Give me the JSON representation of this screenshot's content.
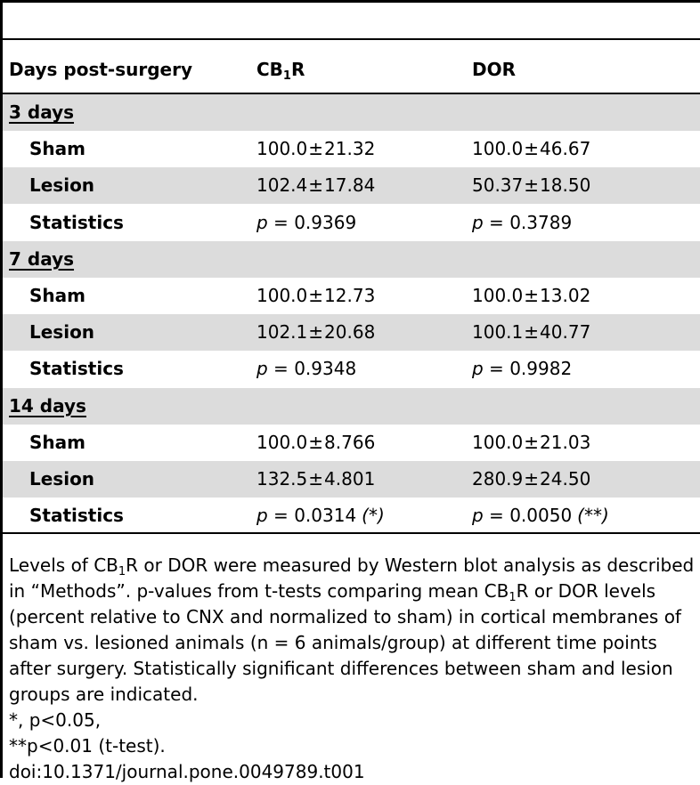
{
  "table": {
    "header": {
      "col1": "Days post-surgery",
      "col2_base": "CB",
      "col2_sub": "1",
      "col2_tail": "R",
      "col3": "DOR"
    },
    "groups": [
      {
        "label": "3 days",
        "rows": [
          {
            "label": "Sham",
            "cb1r_mean": "100.0",
            "cb1r_sd": "21.32",
            "dor_mean": "100.0",
            "dor_sd": "46.67"
          },
          {
            "label": "Lesion",
            "cb1r_mean": "102.4",
            "cb1r_sd": "17.84",
            "dor_mean": "50.37",
            "dor_sd": "18.50"
          },
          {
            "label": "Statistics",
            "cb1r_p": "0.9369",
            "cb1r_sig": "",
            "dor_p": "0.3789",
            "dor_sig": ""
          }
        ]
      },
      {
        "label": "7 days",
        "rows": [
          {
            "label": "Sham",
            "cb1r_mean": "100.0",
            "cb1r_sd": "12.73",
            "dor_mean": "100.0",
            "dor_sd": "13.02"
          },
          {
            "label": "Lesion",
            "cb1r_mean": "102.1",
            "cb1r_sd": "20.68",
            "dor_mean": "100.1",
            "dor_sd": "40.77"
          },
          {
            "label": "Statistics",
            "cb1r_p": "0.9348",
            "cb1r_sig": "",
            "dor_p": "0.9982",
            "dor_sig": ""
          }
        ]
      },
      {
        "label": "14 days",
        "rows": [
          {
            "label": "Sham",
            "cb1r_mean": "100.0",
            "cb1r_sd": "8.766",
            "dor_mean": "100.0",
            "dor_sd": "21.03"
          },
          {
            "label": "Lesion",
            "cb1r_mean": "132.5",
            "cb1r_sd": "4.801",
            "dor_mean": "280.9",
            "dor_sd": "24.50"
          },
          {
            "label": "Statistics",
            "cb1r_p": "0.0314",
            "cb1r_sig": "(*)",
            "dor_p": "0.0050",
            "dor_sig": "(**)"
          }
        ]
      }
    ],
    "pm_symbol": "±",
    "p_symbol": "p",
    "eq_symbol": " = "
  },
  "footnote": {
    "line1_a": "Levels of CB",
    "line1_sub": "1",
    "line1_b": "R or DOR were measured by Western blot analysis as described in “Methods”. p-values from t-tests comparing mean CB",
    "line1_sub2": "1",
    "line1_c": "R or DOR levels (percent relative to CNX and normalized to sham) in cortical membranes of sham vs. lesioned animals (n = 6 animals/group) at different time points after surgery. Statistically significant differences between sham and lesion groups are indicated.",
    "line2": "*, p<0.05,",
    "line3": "**p<0.01 (t-test).",
    "doi": "doi:10.1371/journal.pone.0049789.t001"
  }
}
